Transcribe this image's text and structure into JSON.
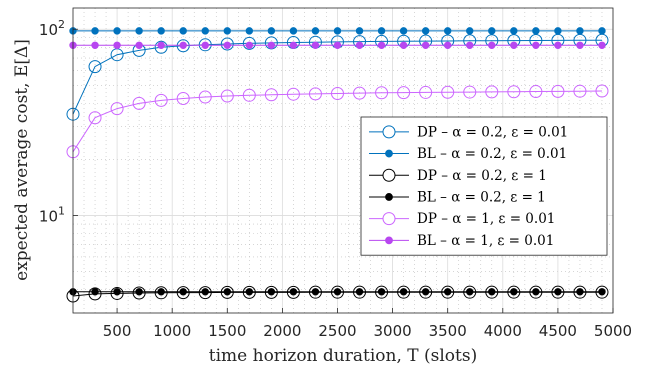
{
  "chart_data": {
    "type": "line",
    "xlabel": "time horizon duration, T (slots)",
    "ylabel": "expected average cost, E[Δ]",
    "xlim": [
      100,
      5000
    ],
    "ylim": [
      3,
      130
    ],
    "yscale": "log",
    "grid": "major and minor, dotted",
    "legend_position": "center-right",
    "x_ticks": [
      500,
      1000,
      1500,
      2000,
      2500,
      3000,
      3500,
      4000,
      4500,
      5000
    ],
    "y_ticks": [
      {
        "value": 10,
        "base": "10",
        "exp": "1"
      },
      {
        "value": 100,
        "base": "10",
        "exp": "2"
      }
    ],
    "x": [
      100,
      300,
      500,
      700,
      900,
      1100,
      1300,
      1500,
      1700,
      1900,
      2100,
      2300,
      2500,
      2700,
      2900,
      3100,
      3300,
      3500,
      3700,
      3900,
      4100,
      4300,
      4500,
      4700,
      4900
    ],
    "series": [
      {
        "name": "DP – α = 0.2, ε = 0.01",
        "color": "#0072BD",
        "marker": "open-circle",
        "values": [
          35,
          63,
          73,
          77,
          80,
          81.5,
          82.5,
          83.3,
          84,
          84.5,
          84.9,
          85.2,
          85.5,
          85.8,
          86,
          86.2,
          86.4,
          86.5,
          86.7,
          86.8,
          86.9,
          87,
          87.1,
          87.2,
          87.3
        ]
      },
      {
        "name": "BL – α = 0.2, ε = 0.01",
        "color": "#0072BD",
        "marker": "filled-dot",
        "values": [
          98,
          98,
          98,
          98,
          98,
          98,
          98,
          98,
          98,
          98,
          98,
          98,
          98,
          98,
          98,
          98,
          98,
          98,
          98,
          98,
          98,
          98,
          98,
          98,
          98
        ]
      },
      {
        "name": "DP – α = 0.2, ε = 1",
        "color": "#000000",
        "marker": "open-circle",
        "values": [
          3.7,
          3.8,
          3.82,
          3.84,
          3.85,
          3.86,
          3.86,
          3.87,
          3.87,
          3.87,
          3.87,
          3.88,
          3.88,
          3.88,
          3.88,
          3.88,
          3.88,
          3.88,
          3.88,
          3.88,
          3.88,
          3.88,
          3.88,
          3.88,
          3.88
        ]
      },
      {
        "name": "BL – α = 0.2, ε = 1",
        "color": "#000000",
        "marker": "filled-dot",
        "values": [
          3.9,
          3.9,
          3.9,
          3.9,
          3.9,
          3.9,
          3.9,
          3.9,
          3.9,
          3.9,
          3.9,
          3.9,
          3.9,
          3.9,
          3.9,
          3.9,
          3.9,
          3.9,
          3.9,
          3.9,
          3.9,
          3.9,
          3.9,
          3.9,
          3.9
        ]
      },
      {
        "name": "DP – α = 1, ε = 0.01",
        "color": "#CC66FF",
        "marker": "open-circle",
        "values": [
          22,
          33.5,
          37.5,
          40,
          41.5,
          42.5,
          43.3,
          43.8,
          44.2,
          44.5,
          44.8,
          45,
          45.2,
          45.4,
          45.6,
          45.7,
          45.8,
          45.9,
          46,
          46.1,
          46.2,
          46.3,
          46.4,
          46.5,
          46.6
        ]
      },
      {
        "name": "BL – α = 1, ε = 0.01",
        "color": "#B847F0",
        "marker": "filled-dot",
        "values": [
          82,
          82,
          82,
          82,
          82,
          82,
          82,
          82,
          82,
          82,
          82,
          82,
          82,
          82,
          82,
          82,
          82,
          82,
          82,
          82,
          82,
          82,
          82,
          82,
          82
        ]
      }
    ]
  }
}
